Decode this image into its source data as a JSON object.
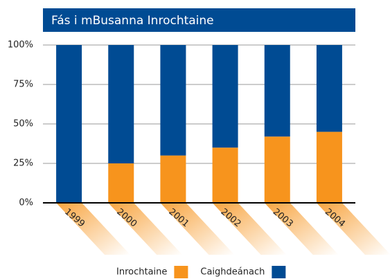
{
  "chart_data": {
    "type": "bar",
    "stacked": true,
    "title": "Fás i mBusanna Inrochtaine",
    "categories": [
      "1999",
      "2000",
      "2001",
      "2002",
      "2003",
      "2004"
    ],
    "series": [
      {
        "name": "Inrochtaine",
        "color": "#f7941d",
        "values": [
          0,
          25,
          30,
          35,
          42,
          45
        ]
      },
      {
        "name": "Caighdeánach",
        "color": "#004b93",
        "values": [
          100,
          75,
          70,
          65,
          58,
          55
        ]
      }
    ],
    "ylim": [
      0,
      100
    ],
    "yticks": [
      {
        "value": 0,
        "label": "0%"
      },
      {
        "value": 25,
        "label": "25%"
      },
      {
        "value": 50,
        "label": "50%"
      },
      {
        "value": 75,
        "label": "75%"
      },
      {
        "value": 100,
        "label": "100%"
      }
    ],
    "grid": true,
    "legend": "bottom"
  }
}
